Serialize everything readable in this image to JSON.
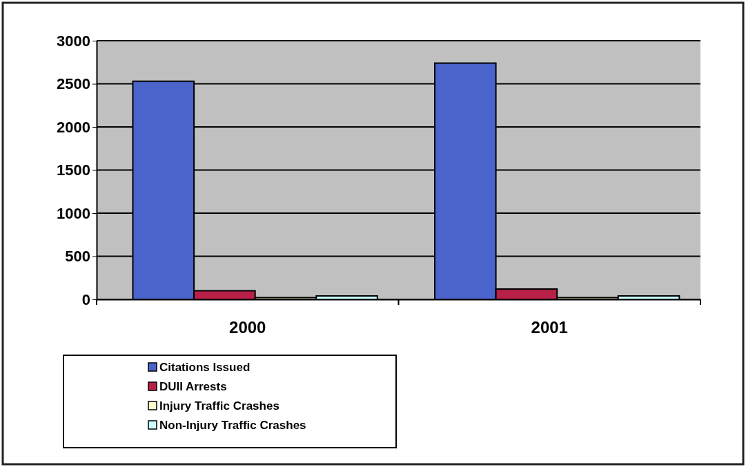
{
  "chart_data": {
    "type": "bar",
    "categories": [
      "2000",
      "2001"
    ],
    "series": [
      {
        "name": "Citations Issued",
        "color": "#4a64cc",
        "values": [
          2530,
          2740
        ]
      },
      {
        "name": "DUII Arrests",
        "color": "#b82048",
        "values": [
          100,
          120
        ]
      },
      {
        "name": "Injury Traffic Crashes",
        "color": "#ffffcc",
        "values": [
          20,
          20
        ]
      },
      {
        "name": "Non-Injury Traffic Crashes",
        "color": "#ccffff",
        "values": [
          40,
          40
        ]
      }
    ],
    "ylim": [
      0,
      3000
    ],
    "yticks": [
      0,
      500,
      1000,
      1500,
      2000,
      2500,
      3000
    ],
    "grid": "y",
    "legend": "bottom left"
  }
}
